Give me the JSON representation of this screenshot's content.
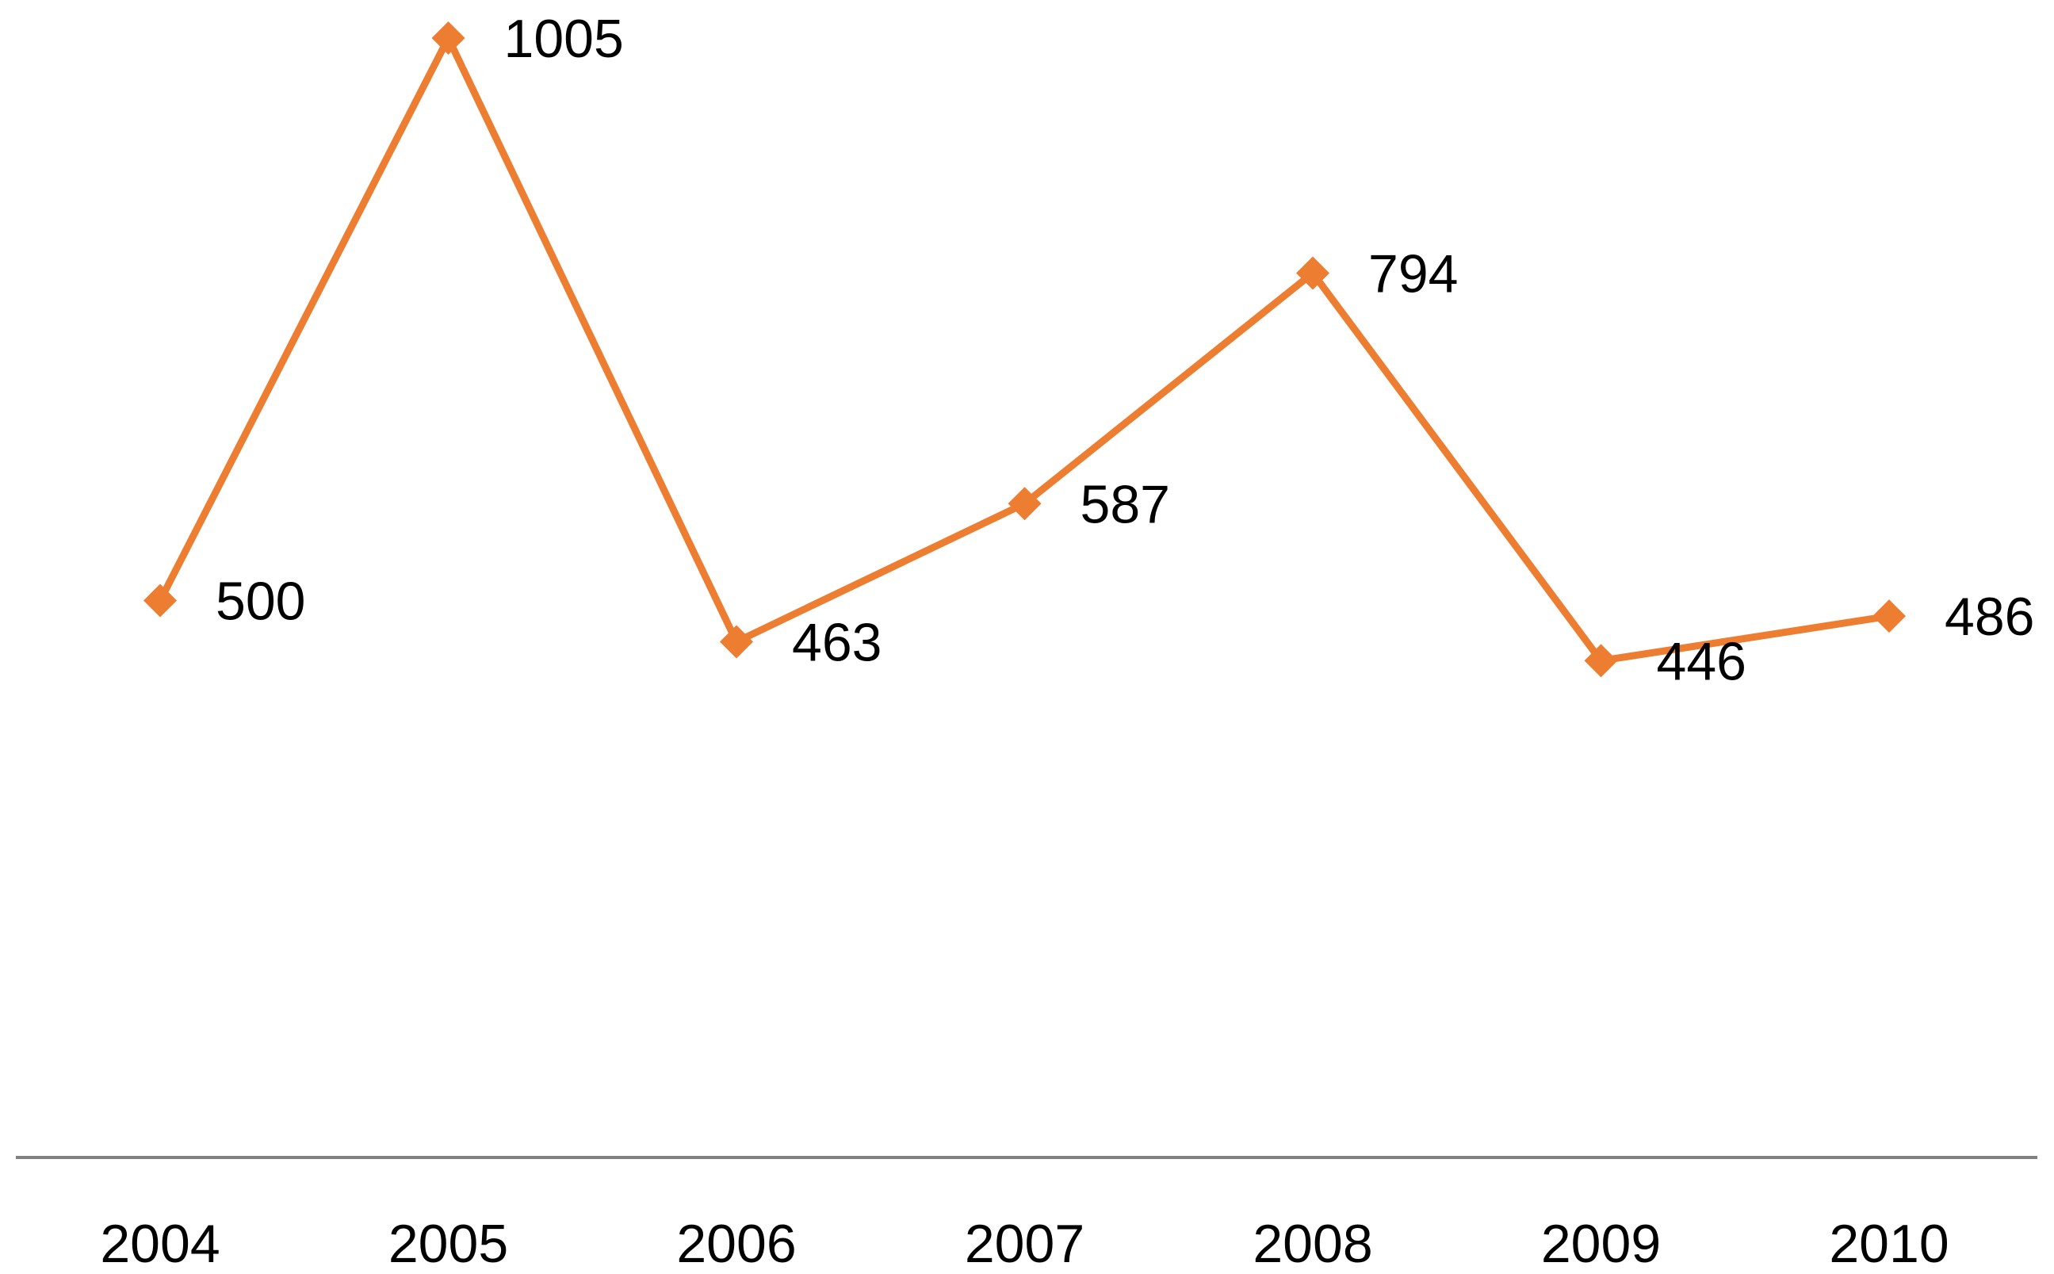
{
  "chart_data": {
    "type": "line",
    "title": "",
    "xlabel": "",
    "ylabel": "",
    "categories": [
      "2004",
      "2005",
      "2006",
      "2007",
      "2008",
      "2009",
      "2010"
    ],
    "series": [
      {
        "values": [
          500,
          1005,
          463,
          587,
          794,
          446,
          486
        ],
        "color": "#ED7D31",
        "marker": "diamond"
      }
    ],
    "data_labels": [
      "500",
      "1005",
      "463",
      "587",
      "794",
      "446",
      "486"
    ],
    "ylim": [
      0,
      1005
    ],
    "grid": false,
    "legend": "none",
    "axis_color": "#808080"
  }
}
